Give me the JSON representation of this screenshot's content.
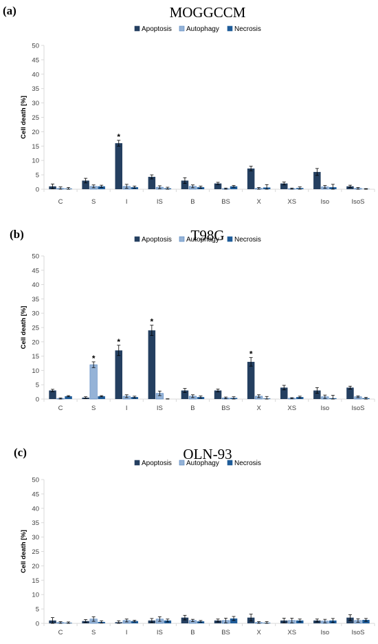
{
  "chart_data": [
    {
      "type": "bar",
      "panel_label": "(a)",
      "title": "MOGGCCM",
      "ylabel": "Cell death [%]",
      "ylim": [
        0,
        50
      ],
      "yticks": [
        0,
        5,
        10,
        15,
        20,
        25,
        30,
        35,
        40,
        45,
        50
      ],
      "legend_position": "top",
      "categories": [
        "C",
        "S",
        "I",
        "IS",
        "B",
        "BS",
        "X",
        "XS",
        "Iso",
        "IsoS"
      ],
      "series": [
        {
          "name": "Apoptosis",
          "color": "#243f60",
          "values": [
            1,
            3,
            16,
            4.3,
            3,
            2,
            7.2,
            2,
            6,
            1
          ],
          "errors": [
            0.8,
            0.8,
            1,
            0.7,
            1,
            0.4,
            0.8,
            0.5,
            1.2,
            0.4
          ]
        },
        {
          "name": "Autophagy",
          "color": "#95b3d7",
          "values": [
            0.3,
            1,
            1,
            0.7,
            1,
            0.2,
            0.3,
            0.2,
            0.8,
            0.3
          ],
          "errors": [
            0.5,
            0.5,
            0.7,
            0.5,
            0.5,
            0.2,
            0.3,
            0.2,
            0.5,
            0.3
          ]
        },
        {
          "name": "Necrosis",
          "color": "#1f5c99",
          "values": [
            0.2,
            1,
            0.7,
            0.3,
            0.7,
            1,
            0.6,
            0.4,
            0.7,
            0.1
          ],
          "errors": [
            0.4,
            0.4,
            0.4,
            0.4,
            0.4,
            0.3,
            1,
            0.4,
            1,
            0.1
          ]
        }
      ],
      "annotations": [
        {
          "category": "I",
          "series": "Apoptosis",
          "text": "*"
        }
      ]
    },
    {
      "type": "bar",
      "panel_label": "(b)",
      "title": "T98G",
      "ylabel": "Cell death [%]",
      "ylim": [
        0,
        50
      ],
      "yticks": [
        0,
        5,
        10,
        15,
        20,
        25,
        30,
        35,
        40,
        45,
        50
      ],
      "legend_position": "top",
      "categories": [
        "C",
        "S",
        "I",
        "IS",
        "B",
        "BS",
        "X",
        "XS",
        "Iso",
        "IsoS"
      ],
      "series": [
        {
          "name": "Apoptosis",
          "color": "#243f60",
          "values": [
            3,
            0.5,
            17,
            24,
            3,
            3,
            13,
            4,
            3,
            4
          ],
          "errors": [
            0.4,
            0.3,
            1.8,
            1.8,
            0.7,
            0.5,
            1.5,
            0.8,
            1,
            0.5
          ]
        },
        {
          "name": "Autophagy",
          "color": "#95b3d7",
          "values": [
            0.2,
            12,
            1,
            2,
            1,
            0.4,
            1,
            0.3,
            0.8,
            0.8
          ],
          "errors": [
            0.2,
            1,
            0.5,
            0.8,
            0.5,
            0.3,
            0.5,
            0.2,
            0.6,
            0.3
          ]
        },
        {
          "name": "Necrosis",
          "color": "#1f5c99",
          "values": [
            1,
            1,
            0.7,
            0,
            0.7,
            0.4,
            0.2,
            0.7,
            0.3,
            0.3
          ],
          "errors": [
            0.2,
            0.2,
            0.3,
            0.1,
            0.4,
            0.4,
            0.7,
            0.3,
            1,
            0.3
          ]
        }
      ],
      "annotations": [
        {
          "category": "S",
          "series": "Autophagy",
          "text": "*"
        },
        {
          "category": "I",
          "series": "Apoptosis",
          "text": "*"
        },
        {
          "category": "IS",
          "series": "Apoptosis",
          "text": "*"
        },
        {
          "category": "X",
          "series": "Apoptosis",
          "text": "*"
        }
      ]
    },
    {
      "type": "bar",
      "panel_label": "(c)",
      "title": "OLN-93",
      "ylabel": "Cell death [%]",
      "ylim": [
        0,
        50
      ],
      "yticks": [
        0,
        5,
        10,
        15,
        20,
        25,
        30,
        35,
        40,
        45,
        50
      ],
      "legend_position": "top",
      "categories": [
        "C",
        "S",
        "I",
        "IS",
        "B",
        "BS",
        "X",
        "XS",
        "Iso",
        "IsoS"
      ],
      "series": [
        {
          "name": "Apoptosis",
          "color": "#243f60",
          "values": [
            1,
            0.8,
            0.4,
            1,
            2,
            1,
            2,
            1,
            1,
            2
          ],
          "errors": [
            1,
            0.5,
            0.5,
            0.7,
            0.8,
            0.5,
            1.2,
            0.8,
            0.5,
            1
          ]
        },
        {
          "name": "Autophagy",
          "color": "#95b3d7",
          "values": [
            0.3,
            1.5,
            1,
            1.5,
            1,
            1,
            0.3,
            1,
            0.8,
            1
          ],
          "errors": [
            0.3,
            0.8,
            0.5,
            0.8,
            0.4,
            0.8,
            0.3,
            0.8,
            0.6,
            0.6
          ]
        },
        {
          "name": "Necrosis",
          "color": "#1f5c99",
          "values": [
            0.2,
            0.5,
            0.8,
            1,
            0.7,
            1.7,
            0.2,
            1,
            1,
            1.2
          ],
          "errors": [
            0.3,
            0.4,
            0.3,
            0.5,
            0.3,
            0.7,
            0.4,
            0.5,
            0.7,
            0.5
          ]
        }
      ],
      "annotations": []
    }
  ]
}
